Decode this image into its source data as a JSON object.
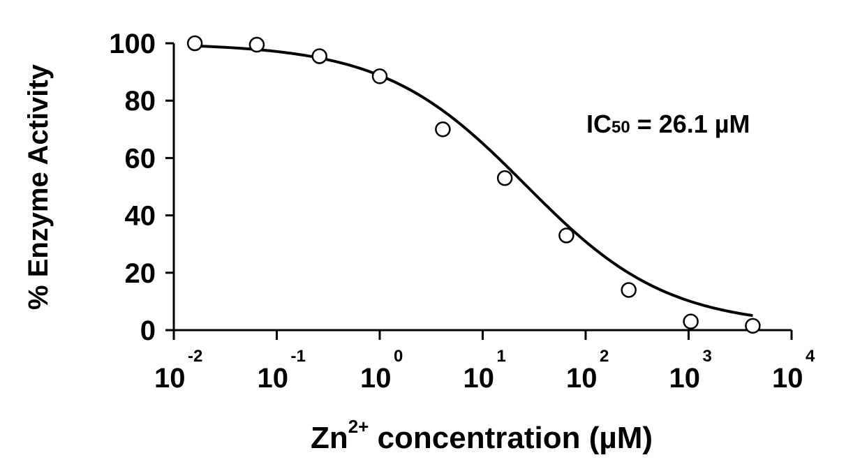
{
  "chart_data": {
    "type": "scatter",
    "xscale": "log",
    "xlim": [
      0.01,
      10000
    ],
    "ylim": [
      0,
      100
    ],
    "xlabel_main": "Zn",
    "xlabel_sup": "2+",
    "xlabel_rest": " concentration (µM)",
    "ylabel": "% Enzyme Activity",
    "x_ticks": [
      {
        "base": "10",
        "exp": "-2",
        "value": 0.01
      },
      {
        "base": "10",
        "exp": "-1",
        "value": 0.1
      },
      {
        "base": "10",
        "exp": "0",
        "value": 1
      },
      {
        "base": "10",
        "exp": "1",
        "value": 10
      },
      {
        "base": "10",
        "exp": "2",
        "value": 100
      },
      {
        "base": "10",
        "exp": "3",
        "value": 1000
      },
      {
        "base": "10",
        "exp": "4",
        "value": 10000
      }
    ],
    "y_ticks": [
      {
        "label": "0",
        "value": 0
      },
      {
        "label": "20",
        "value": 20
      },
      {
        "label": "40",
        "value": 40
      },
      {
        "label": "60",
        "value": 60
      },
      {
        "label": "80",
        "value": 80
      },
      {
        "label": "100",
        "value": 100
      }
    ],
    "series": [
      {
        "x": [
          0.016,
          0.064,
          0.26,
          1.0,
          4.1,
          16.4,
          65,
          262,
          1050,
          4200
        ],
        "y": [
          100,
          99.5,
          95.5,
          88.5,
          70,
          53,
          33,
          14,
          3,
          1.5
        ]
      }
    ],
    "fit": {
      "top": 100,
      "bottom": 1.2,
      "ic50": 26.1,
      "hill": 0.63
    },
    "annotation": {
      "prefix": "IC",
      "sub": "50",
      "suffix": " = 26.1 µM"
    },
    "colors": {
      "axis": "#000000",
      "line": "#000000",
      "marker_fill": "#ffffff",
      "marker_stroke": "#000000"
    }
  }
}
